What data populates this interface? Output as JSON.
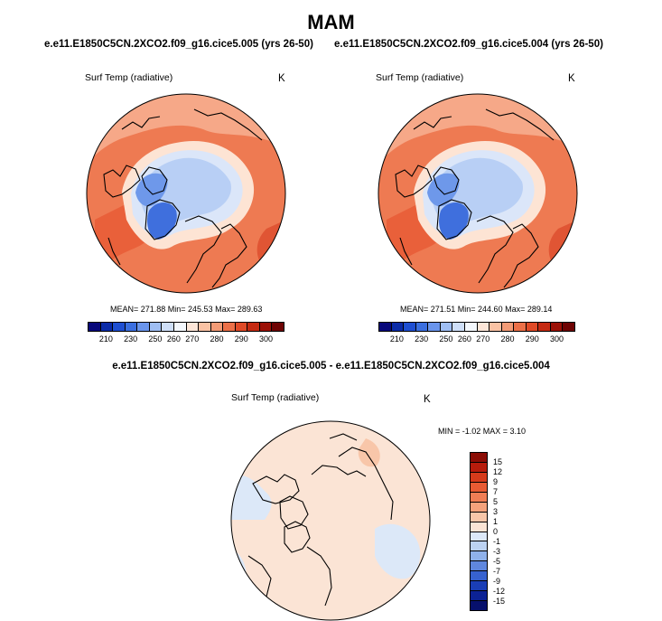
{
  "title": "MAM",
  "left_subtitle": "e.e11.E1850C5CN.2XCO2.f09_g16.cice5.005 (yrs 26-50)",
  "right_subtitle": "e.e11.E1850C5CN.2XCO2.f09_g16.cice5.004 (yrs 26-50)",
  "diff_subtitle": "e.e11.E1850C5CN.2XCO2.f09_g16.cice5.005 - e.e11.E1850C5CN.2XCO2.f09_g16.cice5.004",
  "panels": {
    "left": {
      "variable": "Surf Temp (radiative)",
      "unit": "K",
      "stats": "MEAN= 271.88  Min= 245.53  Max= 289.63"
    },
    "right": {
      "variable": "Surf Temp (radiative)",
      "unit": "K",
      "stats": "MEAN= 271.51  Min= 244.60  Max= 289.14"
    },
    "diff": {
      "variable": "Surf Temp (radiative)",
      "unit": "K",
      "stats": "MIN = -1.02 MAX =  3.10"
    }
  },
  "abs_colorbar": {
    "ticks": [
      "210",
      "230",
      "250",
      "260",
      "270",
      "280",
      "290",
      "300"
    ],
    "colors": [
      "#08087a",
      "#0b2ba8",
      "#1f4fd2",
      "#3b6fe0",
      "#6a95ec",
      "#9fbef3",
      "#cfdff8",
      "#f4f8fd",
      "#fde6d8",
      "#f9c2a4",
      "#f39b76",
      "#ec7048",
      "#e04a27",
      "#c52a12",
      "#9c1107",
      "#6e0303"
    ]
  },
  "diff_colorbar": {
    "ticks": [
      "15",
      "12",
      "9",
      "7",
      "5",
      "3",
      "1",
      "0",
      "-1",
      "-3",
      "-5",
      "-7",
      "-9",
      "-12",
      "-15"
    ],
    "colors": [
      "#8b0d05",
      "#b71c0c",
      "#d63b1b",
      "#e85b33",
      "#f07e55",
      "#f4a27c",
      "#f8c6a9",
      "#fbe4d5",
      "#dce8f8",
      "#bcd2f2",
      "#8fb1ea",
      "#5f87de",
      "#3762cf",
      "#1a3eb6",
      "#0c2295",
      "#07106c"
    ]
  }
}
